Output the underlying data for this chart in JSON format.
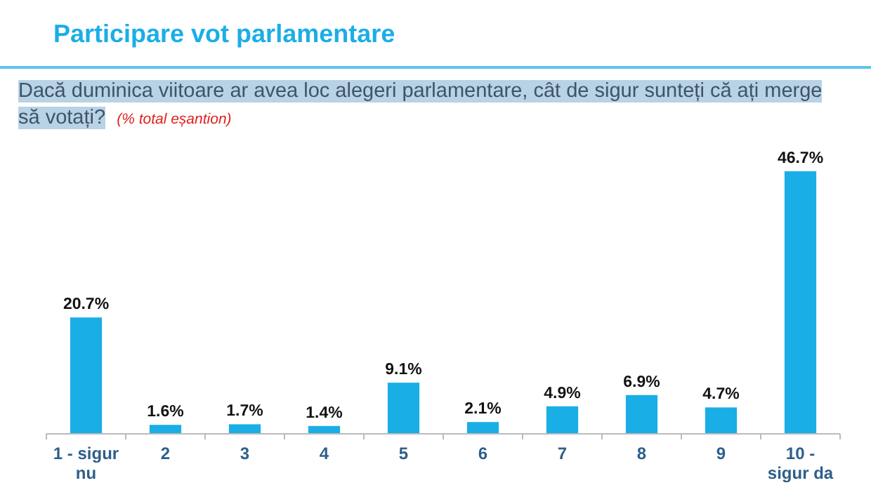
{
  "chart_data": {
    "type": "bar",
    "title": "Participare vot parlamentare",
    "subtitle": "Dacă duminica viitoare ar avea loc alegeri parlamentare, cât de sigur sunteți că ați merge să votați?",
    "annotations": [
      "(% total eșantion)"
    ],
    "categories": [
      "1 - sigur nu",
      "2",
      "3",
      "4",
      "5",
      "6",
      "7",
      "8",
      "9",
      "10 - sigur da"
    ],
    "values": [
      20.7,
      1.6,
      1.7,
      1.4,
      9.1,
      2.1,
      4.9,
      6.9,
      4.7,
      46.7
    ],
    "value_labels": [
      "20.7%",
      "1.6%",
      "1.7%",
      "1.4%",
      "9.1%",
      "2.1%",
      "4.9%",
      "6.9%",
      "4.7%",
      "46.7%"
    ],
    "color": "#1aaee6"
  }
}
